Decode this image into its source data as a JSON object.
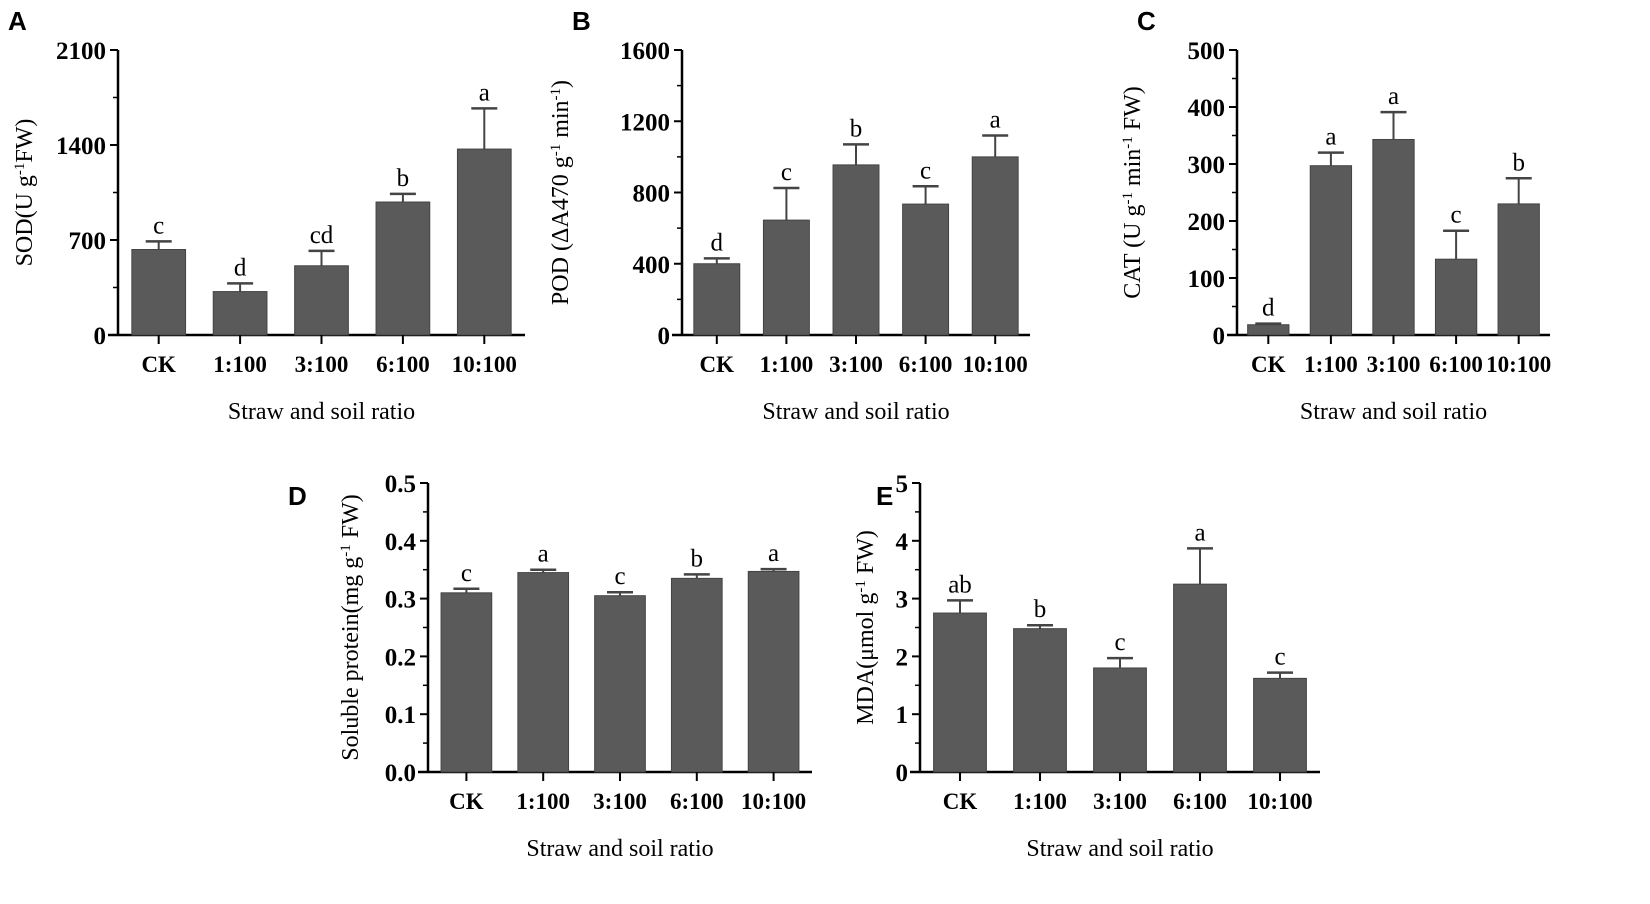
{
  "chart_data": [
    {
      "panel": "A",
      "type": "bar",
      "categories": [
        "CK",
        "1:100",
        "3:100",
        "6:100",
        "10:100"
      ],
      "values": [
        630,
        320,
        510,
        980,
        1370
      ],
      "errors": [
        60,
        60,
        110,
        60,
        300
      ],
      "letters": [
        "c",
        "d",
        "cd",
        "b",
        "a"
      ],
      "ylabel": "SOD(U g-1FW)",
      "ylabel_parts": [
        "SOD(U g",
        "-1",
        "FW)"
      ],
      "xlabel": "Straw and soil ratio",
      "ylim": [
        0,
        2100
      ],
      "yticks": [
        0,
        700,
        1400,
        2100
      ],
      "ytick_labels": [
        "0",
        "700",
        "1400",
        "2100"
      ],
      "bar_color": "#5a5a5a"
    },
    {
      "panel": "B",
      "type": "bar",
      "categories": [
        "CK",
        "1:100",
        "3:100",
        "6:100",
        "10:100"
      ],
      "values": [
        400,
        645,
        955,
        735,
        1000
      ],
      "errors": [
        30,
        180,
        115,
        100,
        120
      ],
      "letters": [
        "d",
        "c",
        "b",
        "c",
        "a"
      ],
      "ylabel": "POD (ΔA470 g-1 min-1)",
      "ylabel_parts": [
        "POD (ΔA470 g",
        "-1",
        " min",
        "-1",
        ")"
      ],
      "xlabel": "Straw and soil ratio",
      "ylim": [
        0,
        1600
      ],
      "yticks": [
        0,
        400,
        800,
        1200,
        1600
      ],
      "ytick_labels": [
        "0",
        "400",
        "800",
        "1200",
        "1600"
      ],
      "bar_color": "#5a5a5a"
    },
    {
      "panel": "C",
      "type": "bar",
      "categories": [
        "CK",
        "1:100",
        "3:100",
        "6:100",
        "10:100"
      ],
      "values": [
        18,
        297,
        343,
        133,
        230
      ],
      "errors": [
        2,
        23,
        48,
        50,
        45
      ],
      "letters": [
        "d",
        "a",
        "a",
        "c",
        "b"
      ],
      "ylabel": "CAT (U g-1 min-1 FW)",
      "ylabel_parts": [
        "CAT (U g",
        "-1",
        " min",
        "-1",
        " FW)"
      ],
      "xlabel": "Straw and soil ratio",
      "ylim": [
        0,
        500
      ],
      "yticks": [
        0,
        100,
        200,
        300,
        400,
        500
      ],
      "ytick_labels": [
        "0",
        "100",
        "200",
        "300",
        "400",
        "500"
      ],
      "bar_color": "#5a5a5a"
    },
    {
      "panel": "D",
      "type": "bar",
      "categories": [
        "CK",
        "1:100",
        "3:100",
        "6:100",
        "10:100"
      ],
      "values": [
        0.31,
        0.345,
        0.305,
        0.335,
        0.347
      ],
      "errors": [
        0.007,
        0.005,
        0.006,
        0.007,
        0.004
      ],
      "letters": [
        "c",
        "a",
        "c",
        "b",
        "a"
      ],
      "ylabel": "Soluble protein(mg g-1 FW)",
      "ylabel_parts": [
        "Soluble protein(mg g",
        "-1",
        " FW)"
      ],
      "xlabel": "Straw and soil ratio",
      "ylim": [
        0,
        0.5
      ],
      "yticks": [
        0,
        0.1,
        0.2,
        0.3,
        0.4,
        0.5
      ],
      "ytick_labels": [
        "0.0",
        "0.1",
        "0.2",
        "0.3",
        "0.4",
        "0.5"
      ],
      "bar_color": "#5a5a5a"
    },
    {
      "panel": "E",
      "type": "bar",
      "categories": [
        "CK",
        "1:100",
        "3:100",
        "6:100",
        "10:100"
      ],
      "values": [
        2.75,
        2.48,
        1.8,
        3.25,
        1.62
      ],
      "errors": [
        0.22,
        0.06,
        0.17,
        0.62,
        0.1
      ],
      "letters": [
        "ab",
        "b",
        "c",
        "a",
        "c"
      ],
      "ylabel": "MDA(μmol g-1 FW)",
      "ylabel_parts": [
        "MDA(μmol g",
        "-1",
        " FW)"
      ],
      "xlabel": "Straw and soil ratio",
      "ylim": [
        0,
        5
      ],
      "yticks": [
        0,
        1,
        2,
        3,
        4,
        5
      ],
      "ytick_labels": [
        "0",
        "1",
        "2",
        "3",
        "4",
        "5"
      ],
      "bar_color": "#5a5a5a"
    }
  ]
}
